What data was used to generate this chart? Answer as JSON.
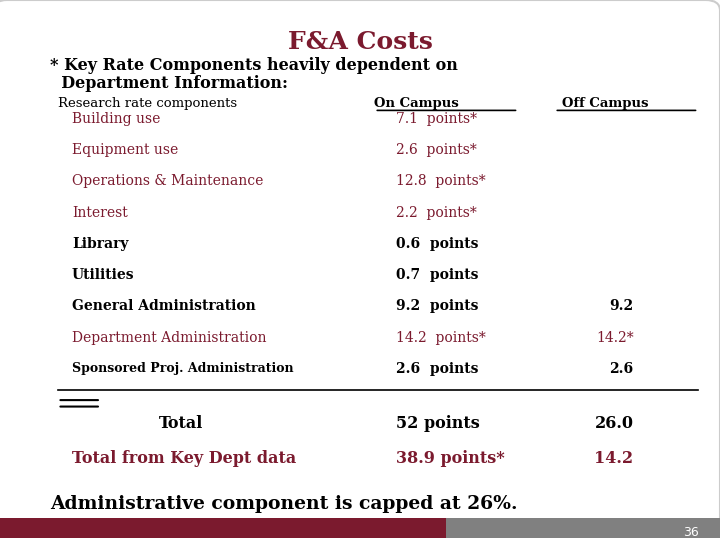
{
  "title": "F&A Costs",
  "title_color": "#7B1A2E",
  "subtitle1": "* Key Rate Components heavily dependent on",
  "subtitle2": "  Department Information:",
  "header_label": "Research rate components",
  "header_oncampus": "On Campus",
  "header_offcampus": "Off Campus",
  "rows": [
    {
      "label": "Building use",
      "indent": true,
      "oncampus": "7.1  points*",
      "offcampus": "",
      "maroon": true,
      "bold": false
    },
    {
      "label": "Equipment use",
      "indent": true,
      "oncampus": "2.6  points*",
      "offcampus": "",
      "maroon": true,
      "bold": false
    },
    {
      "label": "Operations & Maintenance",
      "indent": true,
      "oncampus": "12.8  points*",
      "offcampus": "",
      "maroon": true,
      "bold": false
    },
    {
      "label": "Interest",
      "indent": true,
      "oncampus": "2.2  points*",
      "offcampus": "",
      "maroon": true,
      "bold": false
    },
    {
      "label": "Library",
      "indent": true,
      "oncampus": "0.6  points",
      "offcampus": "",
      "maroon": false,
      "bold": true
    },
    {
      "label": "Utilities",
      "indent": true,
      "oncampus": "0.7  points",
      "offcampus": "",
      "maroon": false,
      "bold": true
    },
    {
      "label": "General Administration",
      "indent": true,
      "oncampus": "9.2  points",
      "offcampus": "9.2",
      "maroon": false,
      "bold": true
    },
    {
      "label": "Department Administration",
      "indent": true,
      "oncampus": "14.2  points*",
      "offcampus": "14.2*",
      "maroon": true,
      "bold": false
    },
    {
      "label": "Sponsored Proj. Administration",
      "indent": true,
      "oncampus": "2.6  points",
      "offcampus": "2.6",
      "maroon": false,
      "bold": true
    }
  ],
  "total_row": {
    "label": "Total",
    "oncampus": "52 points",
    "offcampus": "26.0",
    "maroon": false,
    "bold": true
  },
  "keydept_row": {
    "label": "Total from Key Dept data",
    "oncampus": "38.9 points*",
    "offcampus": "14.2",
    "maroon": true,
    "bold": false
  },
  "bottom_text": "Administrative component is capped at 26%.",
  "page_number": "36",
  "bg_color": "#FFFFFF",
  "maroon_color": "#7B1A2E",
  "black_color": "#000000",
  "header_bg": "#FFFFFF",
  "slide_bg": "#F0F0F0"
}
